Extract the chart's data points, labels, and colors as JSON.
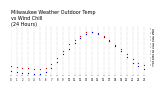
{
  "title": "Milwaukee Weather Outdoor Temp\nvs Wind Chill\n(24 Hours)",
  "title_fontsize": 3.5,
  "temp_color": "#cc0000",
  "windchill_color": "#0000cc",
  "marker_size": 0.8,
  "background_color": "#ffffff",
  "grid_color": "#999999",
  "grid_style": ":",
  "ylabel_right_color": "#000000",
  "xlim": [
    0,
    24
  ],
  "ylim": [
    -10,
    60
  ],
  "yticks_right": [
    5,
    10,
    15,
    20,
    25,
    30,
    35,
    40,
    45,
    50,
    55
  ],
  "xtick_labels": [
    "0",
    "1",
    "2",
    "3",
    "4",
    "5",
    "6",
    "7",
    "8",
    "9",
    "10",
    "11",
    "12",
    "13",
    "14",
    "15",
    "16",
    "17",
    "18",
    "19",
    "20",
    "21",
    "22",
    "23"
  ],
  "xticks": [
    0,
    1,
    2,
    3,
    4,
    5,
    6,
    7,
    8,
    9,
    10,
    11,
    12,
    13,
    14,
    15,
    16,
    17,
    18,
    19,
    20,
    21,
    22,
    23
  ],
  "temp_x": [
    0,
    1,
    2,
    3,
    4,
    5,
    6,
    7,
    8,
    9,
    10,
    11,
    12,
    13,
    14,
    15,
    16,
    17,
    18,
    19,
    20,
    21,
    22,
    23
  ],
  "temp_y": [
    3,
    2,
    1,
    0,
    -1,
    -1,
    1,
    6,
    15,
    25,
    34,
    40,
    46,
    51,
    52,
    50,
    46,
    40,
    33,
    27,
    20,
    13,
    8,
    5
  ],
  "wc_x": [
    0,
    1,
    2,
    3,
    4,
    5,
    6,
    7,
    8,
    9,
    10,
    11,
    12,
    13,
    14,
    15,
    16,
    17,
    18,
    19,
    20,
    21,
    22,
    23
  ],
  "wc_y": [
    -3,
    -5,
    -6,
    -7,
    -8,
    -8,
    -5,
    0,
    9,
    20,
    28,
    36,
    43,
    48,
    51,
    49,
    45,
    39,
    31,
    24,
    16,
    8,
    3,
    -1
  ]
}
